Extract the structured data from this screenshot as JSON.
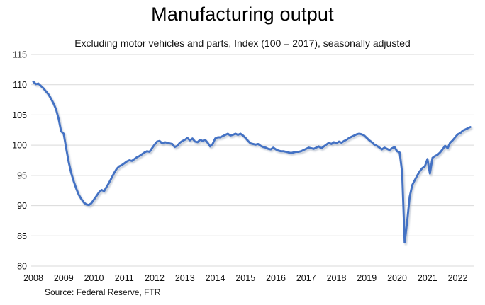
{
  "header": {
    "title": "Manufacturing output",
    "subtitle": "Excluding motor vehicles and parts, Index (100 = 2017), seasonally adjusted"
  },
  "footer": {
    "source": "Source: Federal Reserve, FTR"
  },
  "chart_data": {
    "type": "line",
    "title": "Manufacturing output",
    "subtitle": "Excluding motor vehicles and parts, Index (100 = 2017), seasonally adjusted",
    "source": "Source: Federal Reserve, FTR",
    "legend": "none",
    "grid": "horizontal",
    "grid_color": "#d9d9d9",
    "line_color": "#4472c4",
    "shadow_color": "#9aa5b8",
    "ylim": [
      80,
      115
    ],
    "y_ticks": [
      115,
      110,
      105,
      100,
      95,
      90,
      85,
      80
    ],
    "x_ticks": [
      2008,
      2009,
      2010,
      2011,
      2012,
      2013,
      2014,
      2015,
      2016,
      2017,
      2018,
      2019,
      2020,
      2021,
      2022
    ],
    "series": [
      {
        "name": "Manufacturing output excl. motor vehicles and parts",
        "frequency": "monthly",
        "start": "2008-01",
        "end": "2022-06",
        "values": [
          110.5,
          110.1,
          110.2,
          109.8,
          109.4,
          108.9,
          108.4,
          107.7,
          106.9,
          105.9,
          104.4,
          102.3,
          101.9,
          99.5,
          97.2,
          95.4,
          94.0,
          92.8,
          91.8,
          91.1,
          90.5,
          90.2,
          90.1,
          90.4,
          91.0,
          91.6,
          92.2,
          92.6,
          92.4,
          93.1,
          93.8,
          94.6,
          95.4,
          96.1,
          96.5,
          96.7,
          97.0,
          97.3,
          97.5,
          97.4,
          97.7,
          98.0,
          98.2,
          98.5,
          98.8,
          99.0,
          98.9,
          99.5,
          100.1,
          100.6,
          100.7,
          100.3,
          100.5,
          100.4,
          100.3,
          100.2,
          99.7,
          99.9,
          100.4,
          100.7,
          100.9,
          101.2,
          100.8,
          101.1,
          100.6,
          100.5,
          100.9,
          100.7,
          100.9,
          100.4,
          99.8,
          100.2,
          101.1,
          101.3,
          101.3,
          101.5,
          101.7,
          101.9,
          101.6,
          101.7,
          101.9,
          101.7,
          101.9,
          101.6,
          101.2,
          100.7,
          100.3,
          100.2,
          100.1,
          100.2,
          99.9,
          99.7,
          99.6,
          99.4,
          99.3,
          99.6,
          99.3,
          99.1,
          99.0,
          99.0,
          98.9,
          98.8,
          98.7,
          98.8,
          98.9,
          98.9,
          99.0,
          99.2,
          99.4,
          99.6,
          99.5,
          99.4,
          99.6,
          99.8,
          99.5,
          99.8,
          100.1,
          100.4,
          100.2,
          100.5,
          100.3,
          100.6,
          100.4,
          100.7,
          100.9,
          101.2,
          101.4,
          101.6,
          101.8,
          101.9,
          101.8,
          101.6,
          101.2,
          100.8,
          100.5,
          100.1,
          99.9,
          99.6,
          99.3,
          99.6,
          99.4,
          99.2,
          99.5,
          99.7,
          99.0,
          98.8,
          95.5,
          83.9,
          87.5,
          91.5,
          93.4,
          94.2,
          95.0,
          95.7,
          96.2,
          96.5,
          97.7,
          95.3,
          97.9,
          98.2,
          98.4,
          98.8,
          99.3,
          99.9,
          99.5,
          100.4,
          100.8,
          101.3,
          101.8,
          102.0,
          102.4,
          102.6,
          102.8,
          103.0
        ]
      }
    ]
  }
}
